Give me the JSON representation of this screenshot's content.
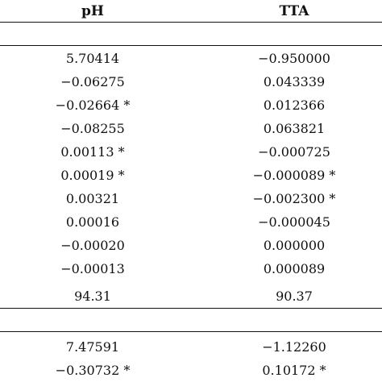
{
  "table": {
    "headers": {
      "ph": "pH",
      "tta": "TTA"
    },
    "section1_rows": [
      {
        "ph": "5.70414",
        "tta": "−0.950000"
      },
      {
        "ph": "−0.06275",
        "tta": "0.043339"
      },
      {
        "ph": "−0.02664 *",
        "tta": "0.012366"
      },
      {
        "ph": "−0.08255",
        "tta": "0.063821"
      },
      {
        "ph": "0.00113 *",
        "tta": "−0.000725"
      },
      {
        "ph": "0.00019 *",
        "tta": "−0.000089 *"
      },
      {
        "ph": "0.00321",
        "tta": "−0.002300 *"
      },
      {
        "ph": "0.00016",
        "tta": "−0.000045"
      },
      {
        "ph": "−0.00020",
        "tta": "0.000000"
      },
      {
        "ph": "−0.00013",
        "tta": "0.000089"
      },
      {
        "ph": "94.31",
        "tta": "90.37"
      }
    ],
    "section2_rows": [
      {
        "ph": "7.47591",
        "tta": "−1.12260"
      },
      {
        "ph": "−0.30732 *",
        "tta": "0.10172 *"
      }
    ]
  }
}
